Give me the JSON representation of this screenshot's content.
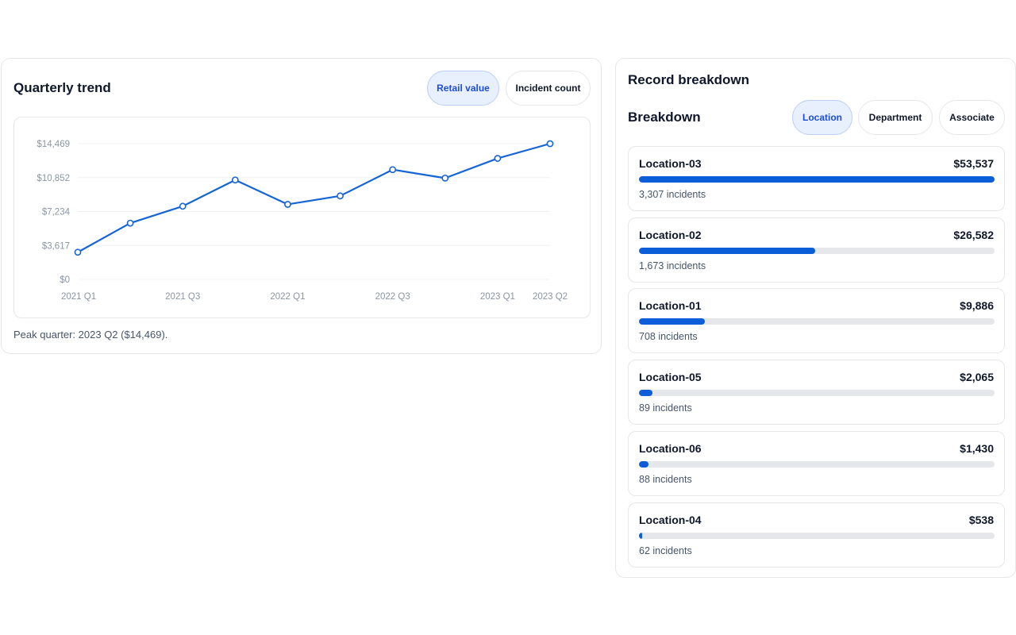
{
  "trend": {
    "title": "Quarterly trend",
    "tabs": [
      {
        "label": "Retail value",
        "active": true
      },
      {
        "label": "Incident count",
        "active": false
      }
    ],
    "peak_note": "Peak quarter: 2023 Q2 ($14,469)."
  },
  "chart_data": {
    "type": "line",
    "title": "",
    "xlabel": "",
    "ylabel": "",
    "x": [
      "2021 Q1",
      "2021 Q2",
      "2021 Q3",
      "2021 Q4",
      "2022 Q1",
      "2022 Q2",
      "2022 Q3",
      "2022 Q4",
      "2023 Q1",
      "2023 Q2"
    ],
    "x_tick_labels": [
      "2021 Q1",
      "2021 Q3",
      "2022 Q1",
      "2022 Q3",
      "2023 Q1",
      "2023 Q2"
    ],
    "y_tick_labels": [
      "$0",
      "$3,617",
      "$7,234",
      "$10,852",
      "$14,469"
    ],
    "ylim": [
      0,
      14469
    ],
    "grid": true,
    "series": [
      {
        "values": [
          2900,
          6000,
          7800,
          10600,
          8000,
          8900,
          11700,
          10800,
          12900,
          14469
        ]
      }
    ],
    "color": "#1565d8"
  },
  "breakdown": {
    "title": "Record breakdown",
    "subtitle": "Breakdown",
    "tabs": [
      {
        "label": "Location",
        "active": true
      },
      {
        "label": "Department",
        "active": false
      },
      {
        "label": "Associate",
        "active": false
      }
    ],
    "rows": [
      {
        "name": "Location-03",
        "value": "$53,537",
        "count": "3,307 incidents",
        "fraction": 1.0
      },
      {
        "name": "Location-02",
        "value": "$26,582",
        "count": "1,673 incidents",
        "fraction": 0.4965
      },
      {
        "name": "Location-01",
        "value": "$9,886",
        "count": "708 incidents",
        "fraction": 0.1847
      },
      {
        "name": "Location-05",
        "value": "$2,065",
        "count": "89 incidents",
        "fraction": 0.0386
      },
      {
        "name": "Location-06",
        "value": "$1,430",
        "count": "88 incidents",
        "fraction": 0.0267
      },
      {
        "name": "Location-04",
        "value": "$538",
        "count": "62 incidents",
        "fraction": 0.01
      }
    ],
    "bar_color": "#0b5ed7"
  }
}
